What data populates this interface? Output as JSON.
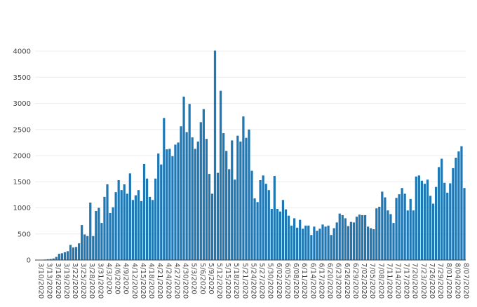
{
  "chart_data": {
    "type": "bar",
    "title": "",
    "xlabel": "",
    "ylabel": "",
    "ylim": [
      0,
      4000
    ],
    "yticks": [
      0,
      500,
      1000,
      1500,
      2000,
      2500,
      3000,
      3500,
      4000
    ],
    "grid": true,
    "bar_color": "#1f77b4",
    "x_tick_labels": [
      "3/10/2020",
      "3/13/2020",
      "3/16/2020",
      "3/19/2020",
      "3/22/2020",
      "3/25/2020",
      "3/28/2020",
      "3/31/2020",
      "4/3/2020",
      "4/6/2020",
      "4/9/2020",
      "4/12/2020",
      "4/15/2020",
      "4/18/2020",
      "4/21/2020",
      "4/24/2020",
      "4/27/2020",
      "4/30/2020",
      "5/3/2020",
      "5/6/2020",
      "5/9/2020",
      "5/12/2020",
      "5/15/2020",
      "5/18/2020",
      "5/21/2020",
      "5/24/2020",
      "5/27/2020",
      "5/30/2020",
      "6/02/2020",
      "6/05/2020",
      "6/08/2020",
      "6/11/2020",
      "6/14/2020",
      "6/17/2020",
      "6/20/2020",
      "6/23/2020",
      "6/26/2020",
      "6/29/2020",
      "7/02/2020",
      "7/05/2020",
      "7/08/2020",
      "7/11/2020",
      "7/14/2020",
      "7/17/2020",
      "7/20/2020",
      "7/23/2020",
      "7/26/2020",
      "7/29/2020",
      "8/01/2020",
      "8/04/2020",
      "8/07/2020"
    ],
    "start_date": "2020-03-10",
    "values": [
      5,
      5,
      5,
      10,
      15,
      20,
      30,
      60,
      120,
      130,
      150,
      170,
      290,
      240,
      250,
      320,
      670,
      490,
      460,
      1100,
      460,
      940,
      1000,
      710,
      1210,
      1450,
      900,
      1010,
      1300,
      1530,
      1340,
      1450,
      1270,
      1660,
      1150,
      1240,
      1340,
      1130,
      1840,
      1560,
      1210,
      1150,
      1560,
      2040,
      1830,
      2720,
      2120,
      2130,
      1990,
      2210,
      2250,
      2560,
      3130,
      2450,
      2990,
      2350,
      2130,
      2270,
      2640,
      2890,
      2320,
      1650,
      1270,
      4010,
      1670,
      3240,
      2430,
      2090,
      1740,
      2290,
      1540,
      2380,
      2270,
      2750,
      2340,
      2500,
      1710,
      1180,
      1110,
      1530,
      1620,
      1460,
      1340,
      980,
      1610,
      980,
      930,
      1150,
      970,
      850,
      660,
      800,
      620,
      770,
      600,
      660,
      660,
      480,
      640,
      560,
      600,
      680,
      640,
      660,
      480,
      610,
      720,
      890,
      860,
      800,
      650,
      730,
      720,
      830,
      870,
      860,
      860,
      640,
      610,
      590,
      990,
      1020,
      1310,
      1200,
      950,
      880,
      710,
      1190,
      1260,
      1380,
      1270,
      950,
      1170,
      950,
      1600,
      1620,
      1520,
      1460,
      1540,
      1230,
      1080,
      1400,
      1780,
      1940,
      1480,
      1290,
      1470,
      1760,
      1960,
      2080,
      2180,
      1380
    ]
  }
}
